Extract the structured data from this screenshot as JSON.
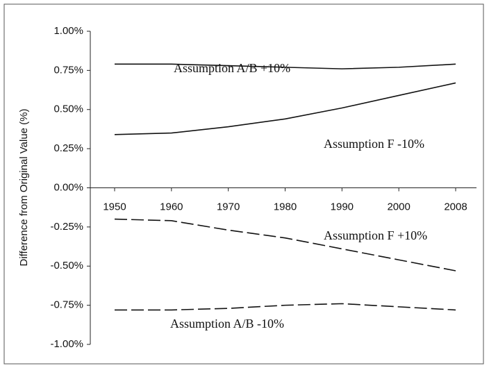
{
  "chart_data": {
    "type": "line",
    "y_label": "Difference from Original Value (%)",
    "categories": [
      "1950",
      "1960",
      "1970",
      "1980",
      "1990",
      "2000",
      "2008"
    ],
    "series": [
      {
        "name": "Assumption A/B +10%",
        "color": "#111111",
        "style": "solid",
        "values": [
          0.79,
          0.79,
          0.78,
          0.77,
          0.76,
          0.77,
          0.79
        ]
      },
      {
        "name": "Assumption F -10%",
        "color": "#111111",
        "style": "solid",
        "values": [
          0.34,
          0.35,
          0.39,
          0.44,
          0.51,
          0.59,
          0.67
        ]
      },
      {
        "name": "Assumption F +10%",
        "color": "#111111",
        "style": "dashed",
        "values": [
          -0.2,
          -0.21,
          -0.27,
          -0.32,
          -0.39,
          -0.46,
          -0.53
        ]
      },
      {
        "name": "Assumption A/B -10%",
        "color": "#111111",
        "style": "dashed",
        "values": [
          -0.78,
          -0.78,
          -0.77,
          -0.75,
          -0.74,
          -0.76,
          -0.78
        ]
      }
    ],
    "ylim": [
      -1,
      1
    ],
    "yticks": [
      {
        "value": 1,
        "label": "1.00%"
      },
      {
        "value": 0.75,
        "label": "0.75%"
      },
      {
        "value": 0.5,
        "label": "0.50%"
      },
      {
        "value": 0.25,
        "label": "0.25%"
      },
      {
        "value": 0,
        "label": "0.00%"
      },
      {
        "value": -0.25,
        "label": "-0.25%"
      },
      {
        "value": -0.5,
        "label": "-0.50%"
      },
      {
        "value": -0.75,
        "label": "-0.75%"
      },
      {
        "value": -1,
        "label": "-1.00%"
      }
    ],
    "grid": false
  }
}
